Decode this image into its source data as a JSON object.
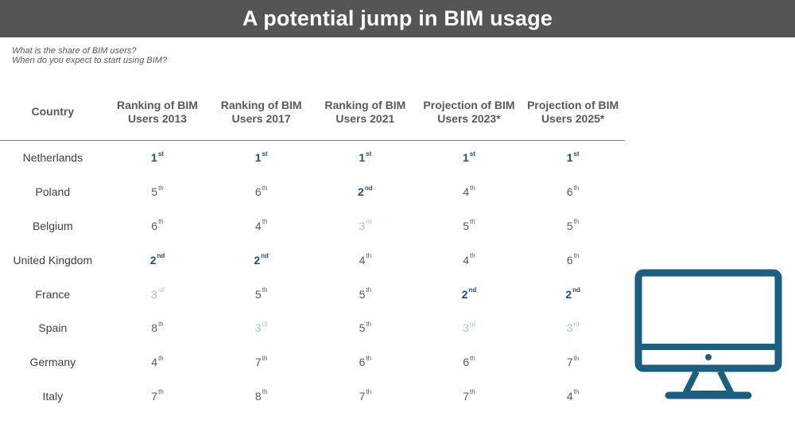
{
  "title": "A potential jump in BIM usage",
  "questions": [
    "What is the share of BIM users?",
    "When do you expect to start using BIM?"
  ],
  "table": {
    "headers": [
      "Country",
      "Ranking of BIM Users 2013",
      "Ranking of BIM Users 2017",
      "Ranking of BIM Users 2021",
      "Projection of BIM Users 2023*",
      "Projection of BIM Users 2025*"
    ],
    "rows": [
      {
        "country": "Netherlands",
        "ranks": [
          [
            "1",
            "st"
          ],
          [
            "1",
            "st"
          ],
          [
            "1",
            "st"
          ],
          [
            "1",
            "st"
          ],
          [
            "1",
            "st"
          ]
        ]
      },
      {
        "country": "Poland",
        "ranks": [
          [
            "5",
            "th"
          ],
          [
            "6",
            "th"
          ],
          [
            "2",
            "nd"
          ],
          [
            "4",
            "th"
          ],
          [
            "6",
            "th"
          ]
        ]
      },
      {
        "country": "Belgium",
        "ranks": [
          [
            "6",
            "th"
          ],
          [
            "4",
            "th"
          ],
          [
            "3",
            "rd"
          ],
          [
            "5",
            "th"
          ],
          [
            "5",
            "th"
          ]
        ]
      },
      {
        "country": "United Kingdom",
        "ranks": [
          [
            "2",
            "nd"
          ],
          [
            "2",
            "nd"
          ],
          [
            "4",
            "th"
          ],
          [
            "4",
            "th"
          ],
          [
            "6",
            "th"
          ]
        ]
      },
      {
        "country": "France",
        "ranks": [
          [
            "3",
            "rd"
          ],
          [
            "5",
            "th"
          ],
          [
            "5",
            "th"
          ],
          [
            "2",
            "nd"
          ],
          [
            "2",
            "nd"
          ]
        ]
      },
      {
        "country": "Spain",
        "ranks": [
          [
            "8",
            "th"
          ],
          [
            "3",
            "rd"
          ],
          [
            "5",
            "th"
          ],
          [
            "3",
            "rd"
          ],
          [
            "3",
            "rd"
          ]
        ]
      },
      {
        "country": "Germany",
        "ranks": [
          [
            "4",
            "th"
          ],
          [
            "7",
            "th"
          ],
          [
            "6",
            "th"
          ],
          [
            "6",
            "th"
          ],
          [
            "7",
            "th"
          ]
        ]
      },
      {
        "country": "Italy",
        "ranks": [
          [
            "7",
            "th"
          ],
          [
            "8",
            "th"
          ],
          [
            "7",
            "th"
          ],
          [
            "7",
            "th"
          ],
          [
            "4",
            "th"
          ]
        ]
      }
    ]
  },
  "colors": {
    "title_bar": "#555555",
    "rank_top": "#1f4e79",
    "rank_third": "#a6bfcf",
    "rank_plain": "#595959",
    "icon": "#1b5e7e"
  },
  "icon": "desktop-monitor-icon"
}
